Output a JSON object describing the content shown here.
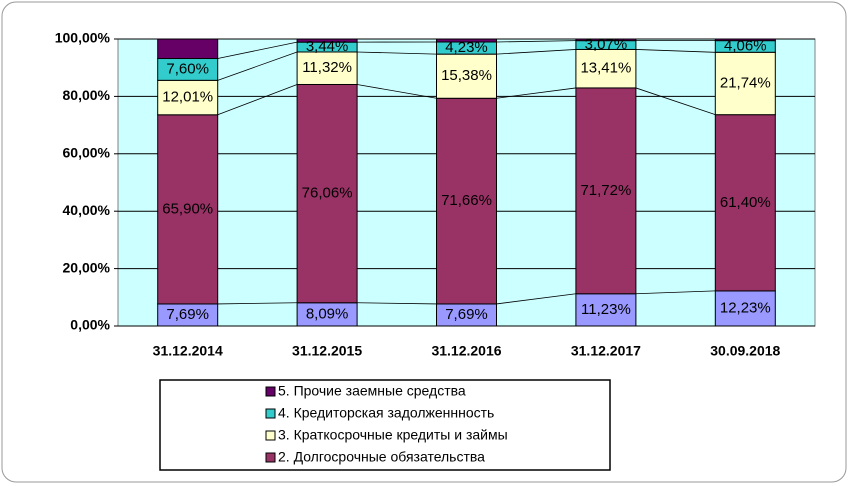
{
  "chart_data": {
    "type": "bar",
    "stacked": true,
    "categories": [
      "31.12.2014",
      "31.12.2015",
      "31.12.2016",
      "31.12.2017",
      "30.09.2018"
    ],
    "series": [
      {
        "color": "#9999ff",
        "values": [
          7.69,
          8.09,
          7.69,
          11.23,
          12.23
        ],
        "value_labels": [
          "7,69%",
          "8,09%",
          "7,69%",
          "11,23%",
          "12,23%"
        ]
      },
      {
        "name": "2. Долгосрочные обязательства",
        "color": "#993366",
        "values": [
          65.9,
          76.06,
          71.66,
          71.72,
          61.4
        ],
        "value_labels": [
          "65,90%",
          "76,06%",
          "71,66%",
          "71,72%",
          "61,40%"
        ]
      },
      {
        "name": "3. Краткосрочные кредиты и займы",
        "color": "#ffffcc",
        "values": [
          12.01,
          11.32,
          15.38,
          13.41,
          21.74
        ],
        "value_labels": [
          "12,01%",
          "11,32%",
          "15,38%",
          "13,41%",
          "21,74%"
        ]
      },
      {
        "name": "4. Кредиторская задолженнность",
        "color": "#33cccc",
        "values": [
          7.6,
          3.44,
          4.23,
          3.07,
          4.06
        ],
        "value_labels": [
          "7,60%",
          "3,44%",
          "4,23%",
          "3,07%",
          "4,06%"
        ]
      },
      {
        "name": "5. Прочие заемные средства",
        "color": "#660066",
        "values": [
          6.8,
          1.09,
          1.04,
          0.57,
          0.57
        ]
      }
    ],
    "ylim": [
      0,
      100
    ],
    "yticks": [
      {
        "value": 0,
        "label": "0,00%"
      },
      {
        "value": 20,
        "label": "20,00%"
      },
      {
        "value": 40,
        "label": "40,00%"
      },
      {
        "value": 60,
        "label": "60,00%"
      },
      {
        "value": 80,
        "label": "80,00%"
      },
      {
        "value": 100,
        "label": "100,00%"
      }
    ],
    "grid": true,
    "plot_background": "#ccffff",
    "series_lines": true
  }
}
